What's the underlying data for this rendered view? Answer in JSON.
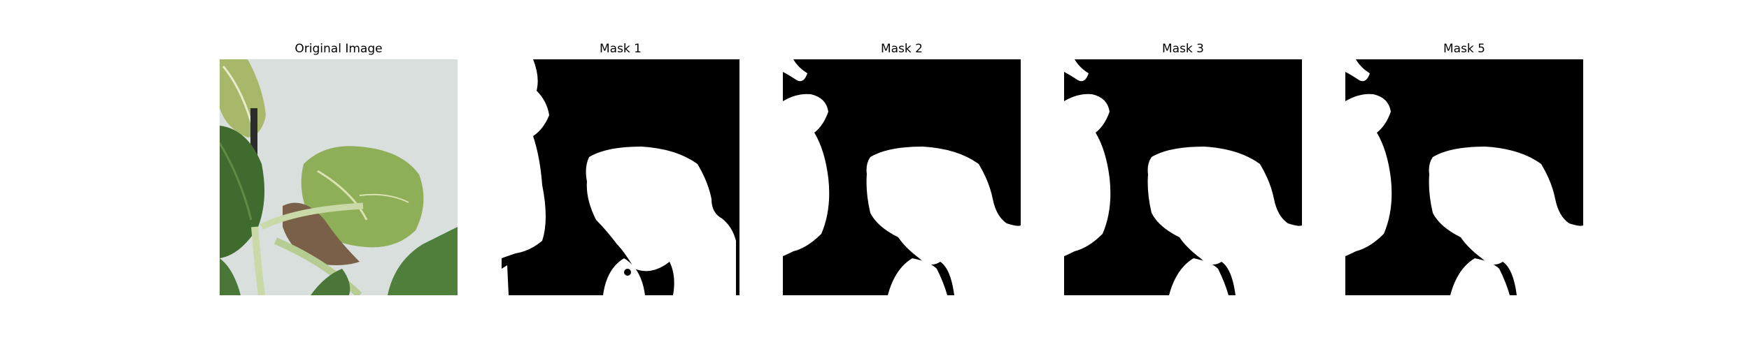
{
  "figure": {
    "panels": [
      {
        "title": "Original Image",
        "kind": "photo"
      },
      {
        "title": "Mask 1",
        "kind": "mask"
      },
      {
        "title": "Mask 2",
        "kind": "mask"
      },
      {
        "title": "Mask 3",
        "kind": "mask"
      },
      {
        "title": "Mask 5",
        "kind": "mask"
      }
    ],
    "colors": {
      "mask_background": "#000000",
      "mask_foreground": "#ffffff",
      "photo_background": "#d9dfdd",
      "leaf_dark": "#3f6b2f",
      "leaf_mid": "#5f8c43",
      "leaf_light": "#9fbb6a",
      "stem": "#c9d9a8",
      "soil": "#7a6048"
    }
  }
}
